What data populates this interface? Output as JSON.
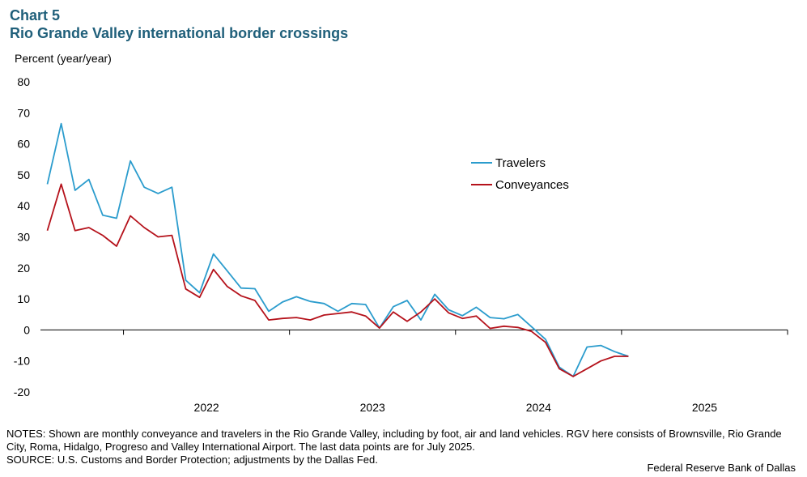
{
  "header": {
    "chart_number": "Chart 5",
    "title": "Rio Grande Valley international border crossings"
  },
  "footer": {
    "notes": "NOTES: Shown are monthly conveyance and travelers in the Rio Grande Valley, including by foot, air and land vehicles. RGV here consists of Brownsville, Rio Grande City, Roma, Hidalgo, Progreso and Valley International Airport. The last data points are for July 2025.",
    "source": "SOURCE: U.S. Customs and Border Protection; adjustments by the Dallas Fed.",
    "credit": "Federal Reserve Bank of Dallas"
  },
  "colors": {
    "travelers": "#2b9ccd",
    "conveyances": "#b5121b"
  },
  "chart_data": {
    "type": "line",
    "title": "Rio Grande Valley international border crossings",
    "ylabel": "Percent (year/year)",
    "ylim": [
      -20,
      80
    ],
    "yticks": [
      80,
      70,
      60,
      50,
      40,
      30,
      20,
      10,
      0,
      -10,
      -20
    ],
    "x_start": "2021-07",
    "x_end": "2025-12",
    "year_labels": [
      "2022",
      "2023",
      "2024",
      "2025"
    ],
    "legend_position": "top-right",
    "series": [
      {
        "name": "Travelers",
        "values": [
          47,
          66.5,
          45,
          48.5,
          37,
          36,
          54.5,
          46,
          44,
          46,
          16,
          12,
          24.5,
          19,
          13.5,
          13.3,
          6,
          9,
          10.7,
          9.2,
          8.5,
          6,
          8.5,
          8.2,
          0.6,
          7.5,
          9.5,
          3.2,
          11.5,
          6.5,
          4.6,
          7.3,
          4,
          3.6,
          5,
          1,
          -3,
          -12,
          -15,
          -5.5,
          -5,
          -7,
          -8.5
        ]
      },
      {
        "name": "Conveyances",
        "values": [
          32,
          47,
          32,
          33,
          30.5,
          27,
          36.8,
          33,
          30,
          30.5,
          13.2,
          10.5,
          19.5,
          14,
          11,
          9.5,
          3.2,
          3.7,
          4,
          3.2,
          4.8,
          5.3,
          5.8,
          4.5,
          0.6,
          5.8,
          2.8,
          5.8,
          10,
          5.5,
          3.7,
          4.5,
          0.5,
          1.2,
          0.8,
          -0.5,
          -4,
          -12.5,
          -15,
          -12.5,
          -10,
          -8.5,
          -8.5
        ]
      }
    ]
  }
}
